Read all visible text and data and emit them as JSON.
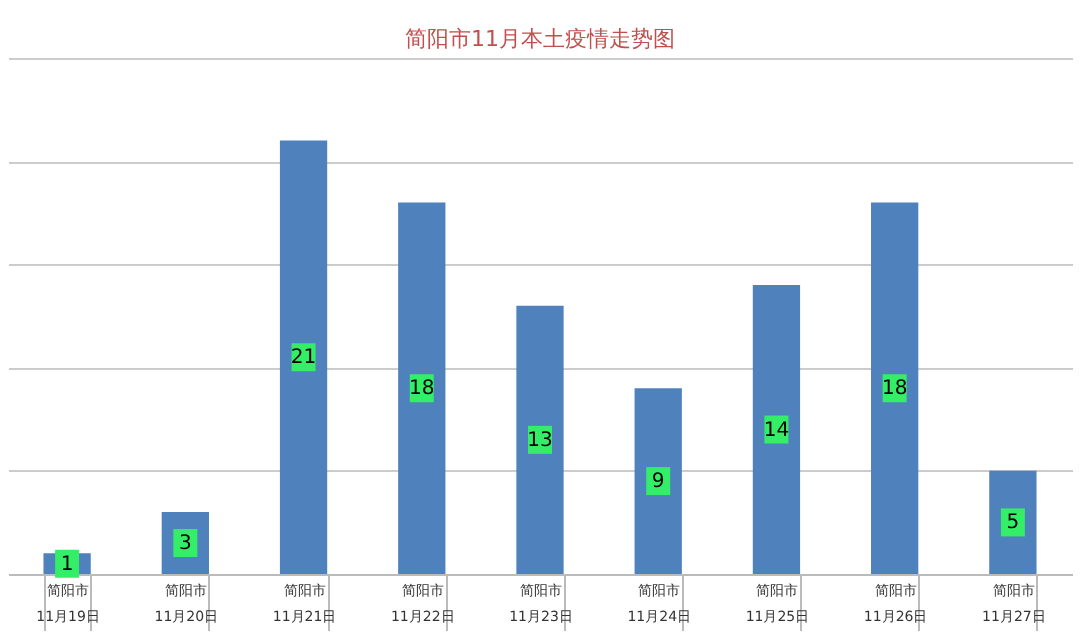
{
  "chart_data": {
    "type": "bar",
    "title": "简阳市11月本土疫情走势图",
    "categories": [
      "简阳市\n11月19日",
      "简阳市\n11月20日",
      "简阳市\n11月21日",
      "简阳市\n11月22日",
      "简阳市\n11月23日",
      "简阳市\n11月24日",
      "简阳市\n11月25日",
      "简阳市\n11月26日",
      "简阳市\n11月27日"
    ],
    "values": [
      1,
      3,
      21,
      18,
      13,
      9,
      14,
      18,
      5
    ],
    "color": "#4f81bd",
    "ylim": [
      0,
      25
    ],
    "yticks": [
      {
        "value": 0,
        "label": null
      },
      {
        "value": 5,
        "label": null
      },
      {
        "value": 10,
        "label": null
      },
      {
        "value": 15,
        "label": null
      },
      {
        "value": 20,
        "label": null
      },
      {
        "value": 25,
        "label": null
      }
    ],
    "tick_labels": "x",
    "grid": "y",
    "data_labels": true
  }
}
